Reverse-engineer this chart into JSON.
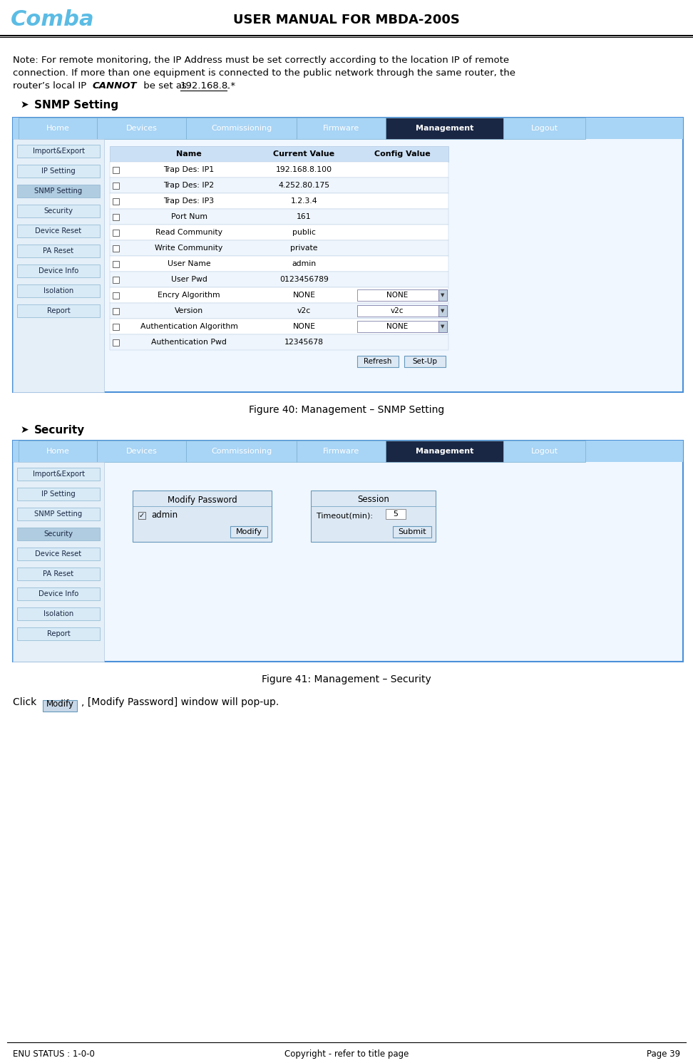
{
  "title": "USER MANUAL FOR MBDA-200S",
  "comba_text": "Comba",
  "comba_color": "#5bbce4",
  "note_line1": "Note: For remote monitoring, the IP Address must be set correctly according to the location IP of remote",
  "note_line2": "connection. If more than one equipment is connected to the public network through the same router, the",
  "note_line3a": "router’s local IP ",
  "note_line3b": "CANNOT",
  "note_line3c": " be set as ",
  "note_line3d": "192.168.8.*",
  "note_line3e": ".",
  "snmp_section_title": "SNMP Setting",
  "security_section_title": "Security",
  "fig40_caption": "Figure 40: Management – SNMP Setting",
  "fig41_caption": "Figure 41: Management – Security",
  "click_text_before": "Click",
  "click_button_text": "Modify",
  "click_text_after": ", [Modify Password] window will pop-up.",
  "footer_left": "ENU STATUS : 1-0-0",
  "footer_center": "Copyright - refer to title page",
  "footer_right": "Page 39",
  "nav_items": [
    "Home",
    "Devices",
    "Commissioning",
    "Firmware",
    "Management",
    "Logout"
  ],
  "nav_active": "Management",
  "nav_bg": "#a8d4f5",
  "nav_active_bg": "#1a2744",
  "sidebar_items": [
    "Import&Export",
    "IP Setting",
    "SNMP Setting",
    "Security",
    "Device Reset",
    "PA Reset",
    "Device Info",
    "Isolation",
    "Report"
  ],
  "sidebar_active_snmp": "SNMP Setting",
  "sidebar_active_security": "Security",
  "snmp_table_headers": [
    "",
    "Name",
    "Current Value",
    "Config Value"
  ],
  "snmp_rows": [
    [
      "",
      "Trap Des: IP1",
      "192.168.8.100",
      ""
    ],
    [
      "",
      "Trap Des: IP2",
      "4.252.80.175",
      ""
    ],
    [
      "",
      "Trap Des: IP3",
      "1.2.3.4",
      ""
    ],
    [
      "",
      "Port Num",
      "161",
      ""
    ],
    [
      "",
      "Read Community",
      "public",
      ""
    ],
    [
      "",
      "Write Community",
      "private",
      ""
    ],
    [
      "",
      "User Name",
      "admin",
      ""
    ],
    [
      "",
      "User Pwd",
      "0123456789",
      ""
    ],
    [
      "",
      "Encry Algorithm",
      "NONE",
      "NONE"
    ],
    [
      "",
      "Version",
      "v2c",
      "v2c"
    ],
    [
      "",
      "Authentication Algorithm",
      "NONE",
      "NONE"
    ],
    [
      "",
      "Authentication Pwd",
      "12345678",
      ""
    ]
  ],
  "snmp_rows_dropdown": [
    8,
    9,
    10
  ],
  "snmp_buttons": [
    "Refresh",
    "Set-Up"
  ],
  "security_modify_label": "Modify Password",
  "security_session_label": "Session",
  "security_admin_checked": "admin",
  "security_timeout_label": "Timeout(min):",
  "security_timeout_value": "5",
  "security_modify_btn": "Modify",
  "security_submit_btn": "Submit",
  "page_bg": "#ffffff",
  "border_color": "#4a90d9",
  "table_border": "#b0c8e0",
  "content_bg": "#f5faff"
}
